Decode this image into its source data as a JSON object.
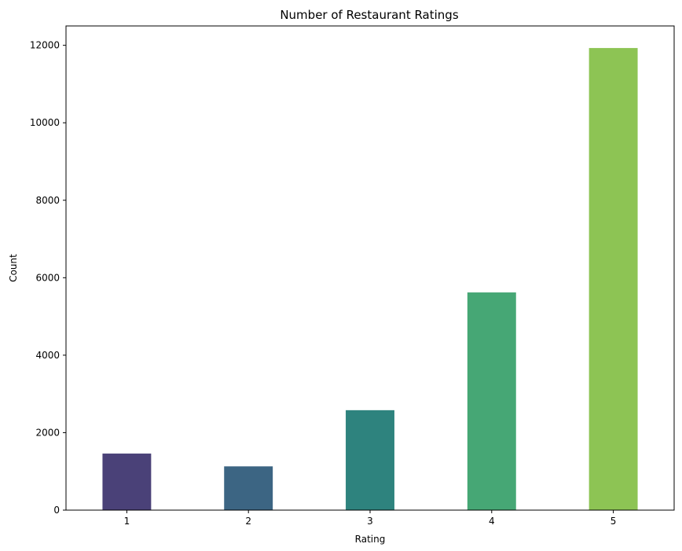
{
  "chart_data": {
    "type": "bar",
    "title": "Number of Restaurant Ratings",
    "xlabel": "Rating",
    "ylabel": "Count",
    "categories": [
      "1",
      "2",
      "3",
      "4",
      "5"
    ],
    "values": [
      1460,
      1130,
      2580,
      5620,
      11930
    ],
    "ylim": [
      0,
      12500
    ],
    "yticks": [
      0,
      2000,
      4000,
      6000,
      8000,
      10000,
      12000
    ],
    "grid": false,
    "legend": "none",
    "colors": [
      "#4a4178",
      "#3c6583",
      "#2e837e",
      "#46a775",
      "#8dc454"
    ]
  }
}
